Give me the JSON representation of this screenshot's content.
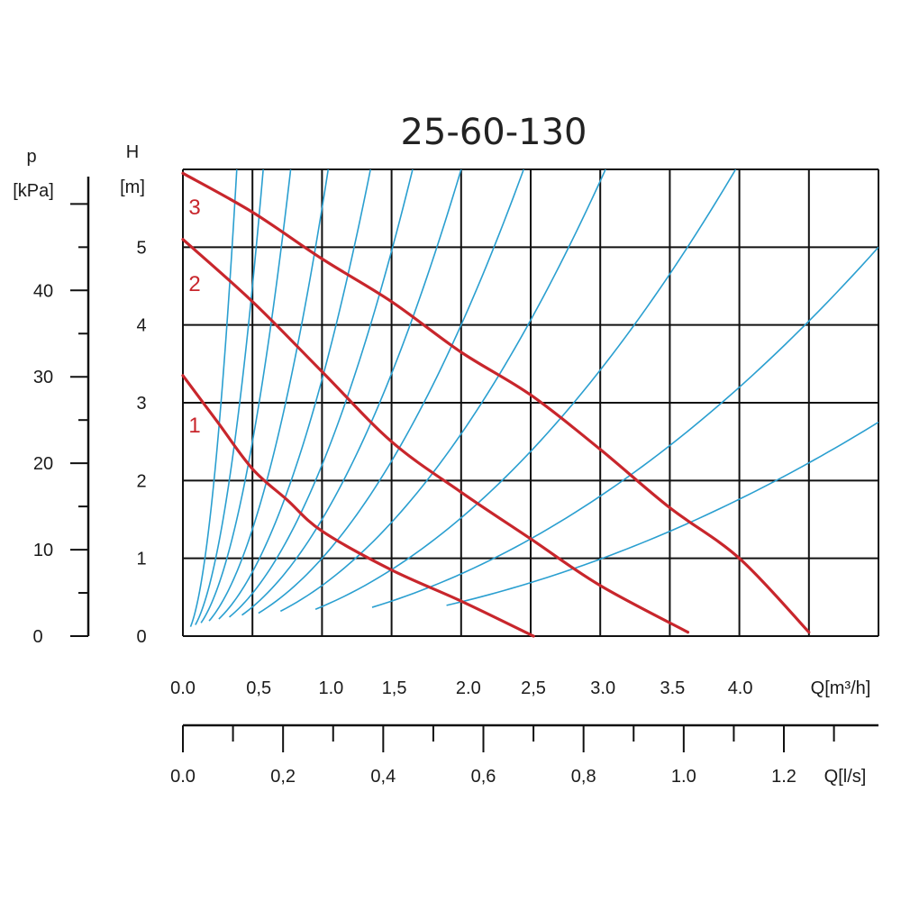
{
  "chart_data": {
    "type": "line",
    "title": "25-60-130",
    "grid": true,
    "x_axis": {
      "unit_label": "Q[m³/h]",
      "range": [
        0,
        5.0
      ],
      "tick_labels": [
        {
          "value": 0,
          "text": "0.0"
        },
        {
          "value": 0.5,
          "text": "0,5"
        },
        {
          "value": 1.0,
          "text": "1.0"
        },
        {
          "value": 1.5,
          "text": "1,5"
        },
        {
          "value": 2.0,
          "text": "2.0"
        },
        {
          "value": 2.5,
          "text": "2,5"
        },
        {
          "value": 3.0,
          "text": "3.0"
        },
        {
          "value": 3.5,
          "text": "3.5"
        },
        {
          "value": 4.0,
          "text": "4.0"
        }
      ]
    },
    "secondary_x_axis": {
      "unit_label": "Q[l/s]",
      "range": [
        0,
        1.389
      ],
      "minor_step": 0.1,
      "tick_labels": [
        {
          "value": 0,
          "text": "0.0"
        },
        {
          "value": 0.2,
          "text": "0,2"
        },
        {
          "value": 0.4,
          "text": "0,4"
        },
        {
          "value": 0.6,
          "text": "0,6"
        },
        {
          "value": 0.8,
          "text": "0,8"
        },
        {
          "value": 1.0,
          "text": "1.0"
        },
        {
          "value": 1.2,
          "text": "1.2"
        }
      ]
    },
    "y_axis": {
      "name": "H",
      "unit": "[m]",
      "range": [
        0,
        6.0
      ],
      "tick_labels": [
        {
          "value": 0,
          "text": "0"
        },
        {
          "value": 1,
          "text": "1"
        },
        {
          "value": 2,
          "text": "2"
        },
        {
          "value": 3,
          "text": "3"
        },
        {
          "value": 4,
          "text": "4"
        },
        {
          "value": 5,
          "text": "5"
        }
      ]
    },
    "secondary_y_axis": {
      "name": "p",
      "unit": "[kPa]",
      "range": [
        0,
        54
      ],
      "minor_step": 5,
      "tick_labels": [
        {
          "value": 0,
          "text": "0"
        },
        {
          "value": 10,
          "text": "10"
        },
        {
          "value": 20,
          "text": "20"
        },
        {
          "value": 30,
          "text": "30"
        },
        {
          "value": 40,
          "text": "40"
        }
      ]
    },
    "series": [
      {
        "name": "1",
        "color": "#c8262c",
        "points": [
          [
            0,
            3.35
          ],
          [
            0.25,
            2.75
          ],
          [
            0.5,
            2.15
          ],
          [
            0.75,
            1.75
          ],
          [
            1.0,
            1.35
          ],
          [
            1.5,
            0.85
          ],
          [
            2.0,
            0.45
          ],
          [
            2.52,
            0.0
          ]
        ]
      },
      {
        "name": "2",
        "color": "#c8262c",
        "points": [
          [
            0,
            5.1
          ],
          [
            0.5,
            4.3
          ],
          [
            1.0,
            3.4
          ],
          [
            1.5,
            2.5
          ],
          [
            2.0,
            1.85
          ],
          [
            2.5,
            1.25
          ],
          [
            3.0,
            0.65
          ],
          [
            3.63,
            0.05
          ]
        ]
      },
      {
        "name": "3",
        "color": "#c8262c",
        "points": [
          [
            0,
            5.95
          ],
          [
            0.5,
            5.45
          ],
          [
            1.0,
            4.85
          ],
          [
            1.5,
            4.3
          ],
          [
            2.0,
            3.65
          ],
          [
            2.5,
            3.1
          ],
          [
            3.0,
            2.4
          ],
          [
            3.5,
            1.65
          ],
          [
            4.0,
            1.0
          ],
          [
            4.5,
            0.05
          ]
        ]
      }
    ],
    "system_curves": {
      "color": "#2a9fd0",
      "coefficients": [
        40,
        18,
        10,
        5.5,
        3.3,
        2.2,
        1.5,
        1.0,
        0.65,
        0.38,
        0.2,
        0.11
      ]
    }
  }
}
